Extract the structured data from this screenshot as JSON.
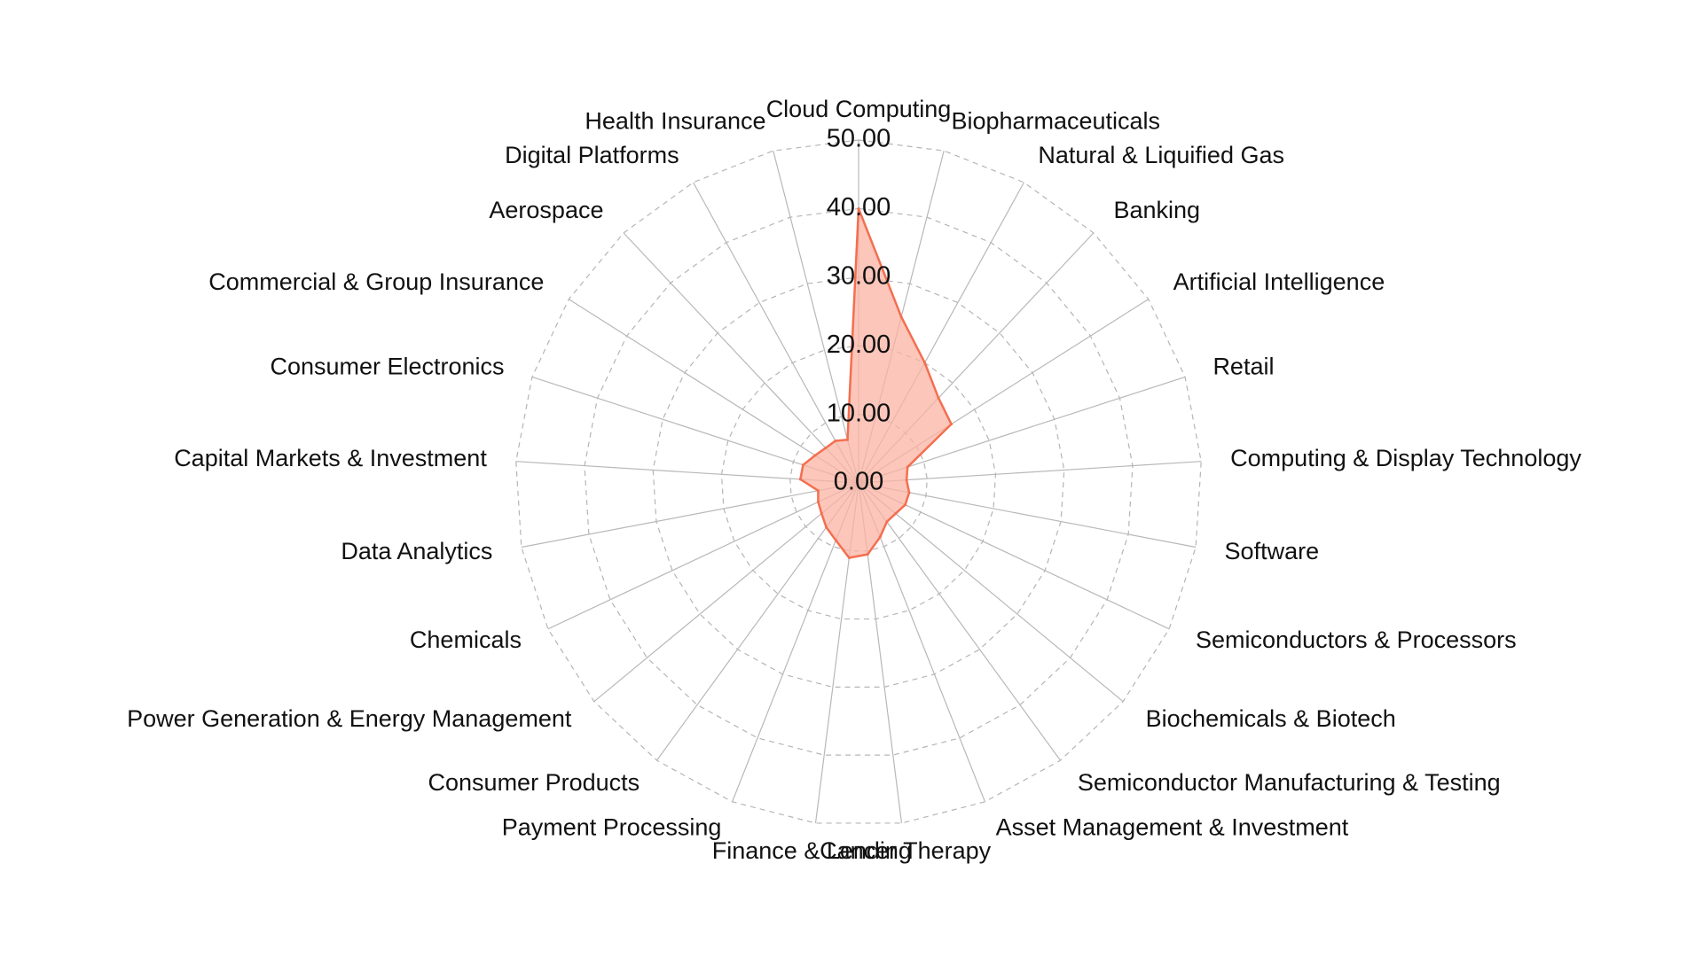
{
  "chart_data": {
    "type": "radar",
    "title": "",
    "categories": [
      "Cloud Computing",
      "Biopharmaceuticals",
      "Natural & Liquified Gas",
      "Banking",
      "Artificial Intelligence",
      "Retail",
      "Computing & Display Technology",
      "Software",
      "Semiconductors & Processors",
      "Biochemicals & Biotech",
      "Semiconductor Manufacturing & Testing",
      "Asset Management & Investment",
      "Cancer Therapy",
      "Finance & Lending",
      "Payment Processing",
      "Consumer Products",
      "Power Generation & Energy Management",
      "Chemicals",
      "Data Analytics",
      "Capital Markets & Investment",
      "Consumer Electronics",
      "Commercial & Group Insurance",
      "Aerospace",
      "Digital Platforms",
      "Health Insurance"
    ],
    "series": [
      {
        "values": [
          40,
          25,
          20,
          17,
          16,
          7.5,
          7,
          7.5,
          7.5,
          7,
          7,
          8.5,
          10.5,
          11,
          9,
          8,
          7,
          6.5,
          6,
          8.5,
          8.5,
          7.5,
          7,
          7,
          6.5
        ]
      }
    ],
    "rlim": [
      0,
      50
    ],
    "tick_values": [
      0,
      10,
      20,
      30,
      40,
      50
    ],
    "tick_labels": [
      "0.00",
      "10.00",
      "20.00",
      "30.00",
      "40.00",
      "50.00"
    ],
    "grid": true,
    "legend": "none",
    "colors": {
      "fill": "#fbb3a3",
      "stroke": "#f36f50",
      "grid": "#b5b5b5",
      "text": "#111111"
    }
  }
}
